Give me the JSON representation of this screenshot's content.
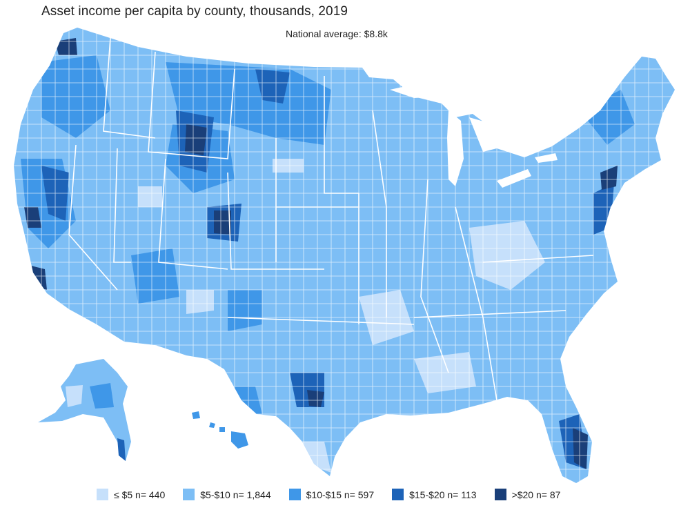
{
  "title": "Asset income per capita by county, thousands, 2019",
  "subtitle": "National average: $8.8k",
  "colors": {
    "lt5": "#c6e0fb",
    "5to10": "#7dbef5",
    "10to15": "#3f97e8",
    "15to20": "#1d63b8",
    "gt20": "#1a3f79",
    "county_border": "#ffffff"
  },
  "legend": [
    {
      "label": "≤ $5 n= 440",
      "color": "#c6e0fb"
    },
    {
      "label": "$5-$10 n= 1,844",
      "color": "#7dbef5"
    },
    {
      "label": "$10-$15 n= 597",
      "color": "#3f97e8"
    },
    {
      "label": "$15-$20 n= 113",
      "color": "#1d63b8"
    },
    {
      "label": ">$20 n= 87",
      "color": "#1a3f79"
    }
  ]
}
